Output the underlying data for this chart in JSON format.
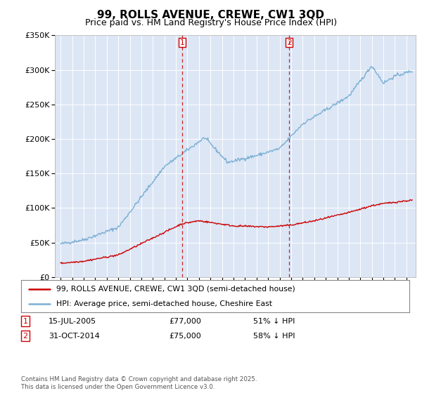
{
  "title": "99, ROLLS AVENUE, CREWE, CW1 3QD",
  "subtitle": "Price paid vs. HM Land Registry's House Price Index (HPI)",
  "ylabel_ticks": [
    "£0",
    "£50K",
    "£100K",
    "£150K",
    "£200K",
    "£250K",
    "£300K",
    "£350K"
  ],
  "ylim": [
    0,
    350000
  ],
  "xlim": [
    1994.5,
    2025.8
  ],
  "sale1_date": "15-JUL-2005",
  "sale1_price": "£77,000",
  "sale1_hpi": "51% ↓ HPI",
  "sale1_year": 2005.54,
  "sale2_date": "31-OCT-2014",
  "sale2_price": "£75,000",
  "sale2_hpi": "58% ↓ HPI",
  "sale2_year": 2014.83,
  "legend_red": "99, ROLLS AVENUE, CREWE, CW1 3QD (semi-detached house)",
  "legend_blue": "HPI: Average price, semi-detached house, Cheshire East",
  "footer": "Contains HM Land Registry data © Crown copyright and database right 2025.\nThis data is licensed under the Open Government Licence v3.0.",
  "fig_bg": "#ffffff",
  "plot_bg": "#dce6f5",
  "red_color": "#cc0000",
  "blue_color": "#7bafd4",
  "vline_color": "#cc0000",
  "grid_color": "#ffffff",
  "title_fontsize": 11,
  "subtitle_fontsize": 9
}
